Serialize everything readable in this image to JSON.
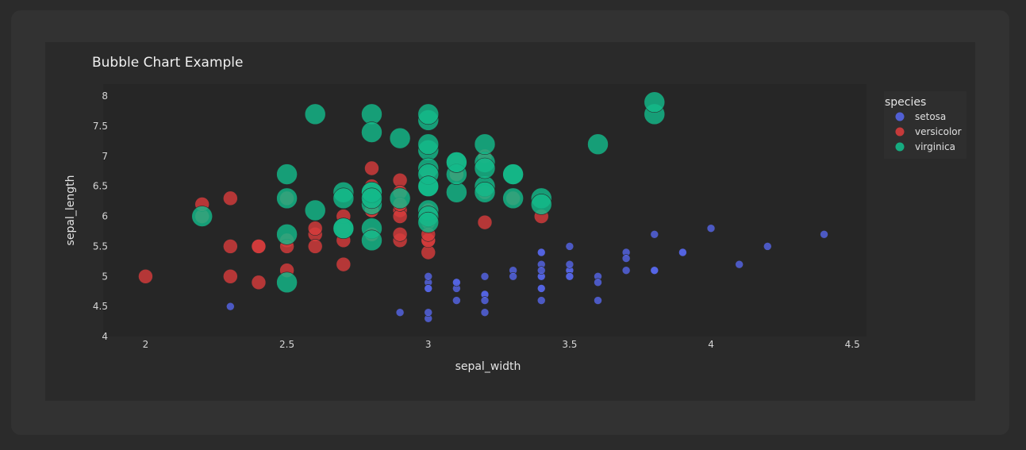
{
  "chart_data": {
    "type": "scatter",
    "title": "Bubble Chart Example",
    "xlabel": "sepal_width",
    "ylabel": "sepal_length",
    "xlim": [
      1.85,
      4.55
    ],
    "ylim": [
      4,
      8.2
    ],
    "xticks": [
      2,
      2.5,
      3,
      3.5,
      4,
      4.5
    ],
    "xtick_labels": [
      "2",
      "2.5",
      "3",
      "3.5",
      "4",
      "4.5"
    ],
    "yticks": [
      4,
      4.5,
      5,
      5.5,
      6,
      6.5,
      7,
      7.5,
      8
    ],
    "ytick_labels": [
      "4",
      "4.5",
      "5",
      "5.5",
      "6",
      "6.5",
      "7",
      "7.5",
      "8"
    ],
    "grid": false,
    "legend": {
      "title": "species",
      "placement": "top-right"
    },
    "series": [
      {
        "name": "setosa",
        "color": "#5565e6",
        "size": 1,
        "points": [
          [
            3.5,
            5.1
          ],
          [
            3.0,
            4.9
          ],
          [
            3.2,
            4.7
          ],
          [
            3.1,
            4.6
          ],
          [
            3.6,
            5.0
          ],
          [
            3.9,
            5.4
          ],
          [
            3.4,
            4.6
          ],
          [
            3.4,
            5.0
          ],
          [
            2.9,
            4.4
          ],
          [
            3.1,
            4.9
          ],
          [
            3.7,
            5.4
          ],
          [
            3.4,
            4.8
          ],
          [
            3.0,
            4.8
          ],
          [
            3.0,
            4.3
          ],
          [
            4.0,
            5.8
          ],
          [
            4.4,
            5.7
          ],
          [
            3.9,
            5.4
          ],
          [
            3.5,
            5.1
          ],
          [
            3.8,
            5.7
          ],
          [
            3.8,
            5.1
          ],
          [
            3.4,
            5.4
          ],
          [
            3.7,
            5.1
          ],
          [
            3.6,
            4.6
          ],
          [
            3.3,
            5.1
          ],
          [
            3.4,
            4.8
          ],
          [
            3.0,
            5.0
          ],
          [
            3.4,
            5.0
          ],
          [
            3.5,
            5.2
          ],
          [
            3.4,
            5.2
          ],
          [
            3.2,
            4.7
          ],
          [
            3.1,
            4.8
          ],
          [
            3.4,
            5.4
          ],
          [
            4.1,
            5.2
          ],
          [
            4.2,
            5.5
          ],
          [
            3.1,
            4.9
          ],
          [
            3.2,
            5.0
          ],
          [
            3.5,
            5.5
          ],
          [
            3.6,
            4.9
          ],
          [
            3.0,
            4.4
          ],
          [
            3.4,
            5.1
          ],
          [
            3.5,
            5.0
          ],
          [
            2.3,
            4.5
          ],
          [
            3.2,
            4.4
          ],
          [
            3.5,
            5.0
          ],
          [
            3.8,
            5.1
          ],
          [
            3.0,
            4.8
          ],
          [
            3.8,
            5.1
          ],
          [
            3.2,
            4.6
          ],
          [
            3.7,
            5.3
          ],
          [
            3.3,
            5.0
          ]
        ]
      },
      {
        "name": "versicolor",
        "color": "#d63c3c",
        "size": 2,
        "points": [
          [
            3.2,
            7.0
          ],
          [
            3.2,
            6.4
          ],
          [
            3.1,
            6.9
          ],
          [
            2.3,
            5.5
          ],
          [
            2.8,
            6.5
          ],
          [
            2.8,
            5.7
          ],
          [
            3.3,
            6.3
          ],
          [
            2.4,
            4.9
          ],
          [
            2.9,
            6.6
          ],
          [
            2.7,
            5.2
          ],
          [
            2.0,
            5.0
          ],
          [
            3.0,
            5.9
          ],
          [
            2.2,
            6.0
          ],
          [
            2.9,
            6.1
          ],
          [
            2.9,
            5.6
          ],
          [
            3.1,
            6.7
          ],
          [
            3.0,
            5.6
          ],
          [
            2.7,
            5.8
          ],
          [
            2.2,
            6.2
          ],
          [
            2.5,
            5.6
          ],
          [
            3.2,
            5.9
          ],
          [
            2.8,
            6.1
          ],
          [
            2.5,
            6.3
          ],
          [
            2.8,
            6.1
          ],
          [
            2.9,
            6.4
          ],
          [
            3.0,
            6.6
          ],
          [
            2.8,
            6.8
          ],
          [
            3.0,
            6.7
          ],
          [
            2.9,
            6.0
          ],
          [
            2.6,
            5.7
          ],
          [
            2.4,
            5.5
          ],
          [
            2.4,
            5.5
          ],
          [
            2.7,
            5.8
          ],
          [
            2.7,
            6.0
          ],
          [
            3.0,
            5.4
          ],
          [
            3.4,
            6.0
          ],
          [
            3.1,
            6.7
          ],
          [
            2.3,
            6.3
          ],
          [
            3.0,
            5.6
          ],
          [
            2.5,
            5.5
          ],
          [
            2.6,
            5.5
          ],
          [
            3.0,
            6.1
          ],
          [
            2.6,
            5.8
          ],
          [
            2.3,
            5.0
          ],
          [
            2.7,
            5.6
          ],
          [
            3.0,
            5.7
          ],
          [
            2.9,
            5.7
          ],
          [
            2.9,
            6.2
          ],
          [
            2.5,
            5.1
          ],
          [
            2.8,
            5.7
          ]
        ]
      },
      {
        "name": "virginica",
        "color": "#14b98a",
        "size": 3,
        "points": [
          [
            3.3,
            6.3
          ],
          [
            2.7,
            5.8
          ],
          [
            3.0,
            7.1
          ],
          [
            2.9,
            6.3
          ],
          [
            3.0,
            6.5
          ],
          [
            3.0,
            7.6
          ],
          [
            2.5,
            4.9
          ],
          [
            2.9,
            7.3
          ],
          [
            2.5,
            6.7
          ],
          [
            3.6,
            7.2
          ],
          [
            3.2,
            6.5
          ],
          [
            2.7,
            6.4
          ],
          [
            3.0,
            6.8
          ],
          [
            2.5,
            5.7
          ],
          [
            2.8,
            5.8
          ],
          [
            3.2,
            6.4
          ],
          [
            3.0,
            6.5
          ],
          [
            3.8,
            7.7
          ],
          [
            2.6,
            7.7
          ],
          [
            2.2,
            6.0
          ],
          [
            3.2,
            6.9
          ],
          [
            2.8,
            5.6
          ],
          [
            2.8,
            7.7
          ],
          [
            2.7,
            6.3
          ],
          [
            3.3,
            6.7
          ],
          [
            3.2,
            7.2
          ],
          [
            2.8,
            6.2
          ],
          [
            3.0,
            6.1
          ],
          [
            2.8,
            6.4
          ],
          [
            3.0,
            7.2
          ],
          [
            2.8,
            7.4
          ],
          [
            3.8,
            7.9
          ],
          [
            2.8,
            6.4
          ],
          [
            2.8,
            6.3
          ],
          [
            2.6,
            6.1
          ],
          [
            3.0,
            7.7
          ],
          [
            3.4,
            6.3
          ],
          [
            3.1,
            6.4
          ],
          [
            3.0,
            6.0
          ],
          [
            3.1,
            6.9
          ],
          [
            3.1,
            6.7
          ],
          [
            3.1,
            6.9
          ],
          [
            2.7,
            5.8
          ],
          [
            3.2,
            6.8
          ],
          [
            3.3,
            6.7
          ],
          [
            3.0,
            6.7
          ],
          [
            2.5,
            6.3
          ],
          [
            3.0,
            6.5
          ],
          [
            3.4,
            6.2
          ],
          [
            3.0,
            5.9
          ]
        ]
      }
    ]
  }
}
